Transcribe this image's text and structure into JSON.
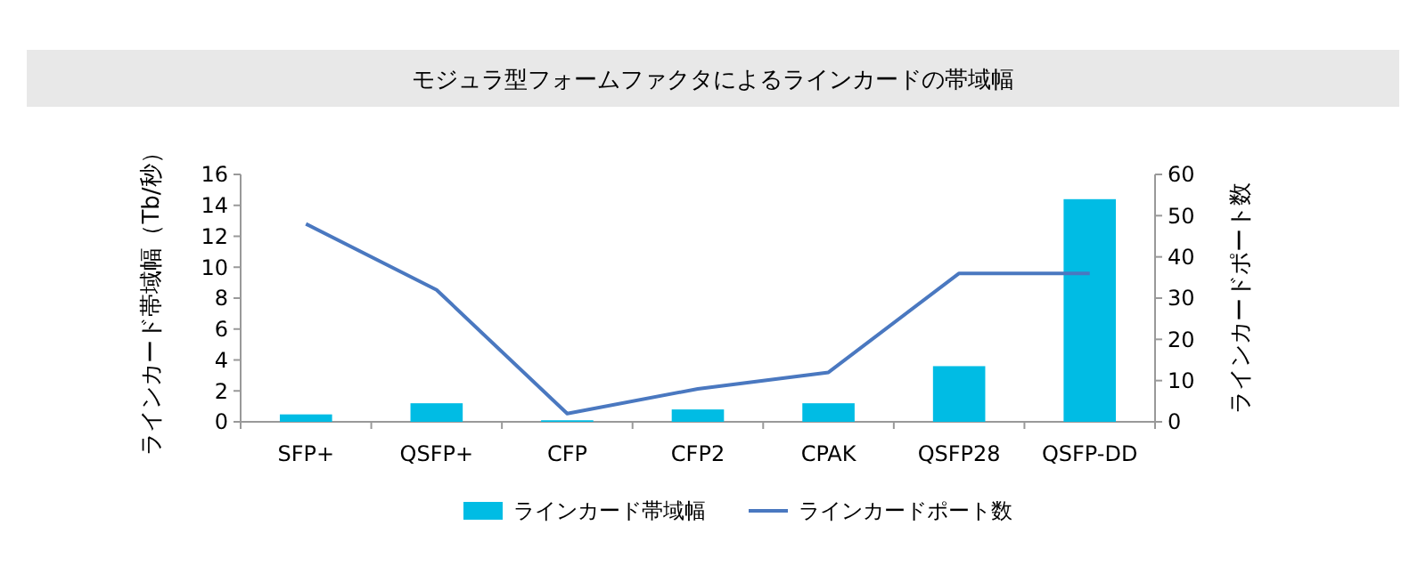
{
  "chart_data": {
    "type": "bar",
    "title": "モジュラ型フォームファクタによるラインカードの帯域幅",
    "categories": [
      "SFP+",
      "QSFP+",
      "CFP",
      "CFP2",
      "CPAK",
      "QSFP28",
      "QSFP-DD"
    ],
    "series": [
      {
        "name": "ラインカード帯域幅",
        "color": "#00bce4",
        "values": [
          0.48,
          1.2,
          0.1,
          0.8,
          1.2,
          3.6,
          14.4
        ]
      },
      {
        "name": "ラインカードポート数",
        "type": "line",
        "axis": "y2",
        "color": "#4a78c0",
        "values": [
          48,
          32,
          2,
          8,
          12,
          36,
          36
        ]
      }
    ],
    "ylabel": "ラインカード帯域幅（Tb/秒）",
    "y2label": "ラインカードポート数",
    "ylim": [
      0,
      16
    ],
    "yticks": [
      0,
      2,
      4,
      6,
      8,
      10,
      12,
      14,
      16
    ],
    "y2lim": [
      0,
      60
    ],
    "y2ticks": [
      0,
      10,
      20,
      30,
      40,
      50,
      60
    ],
    "legend": "bottom",
    "grid": false
  }
}
